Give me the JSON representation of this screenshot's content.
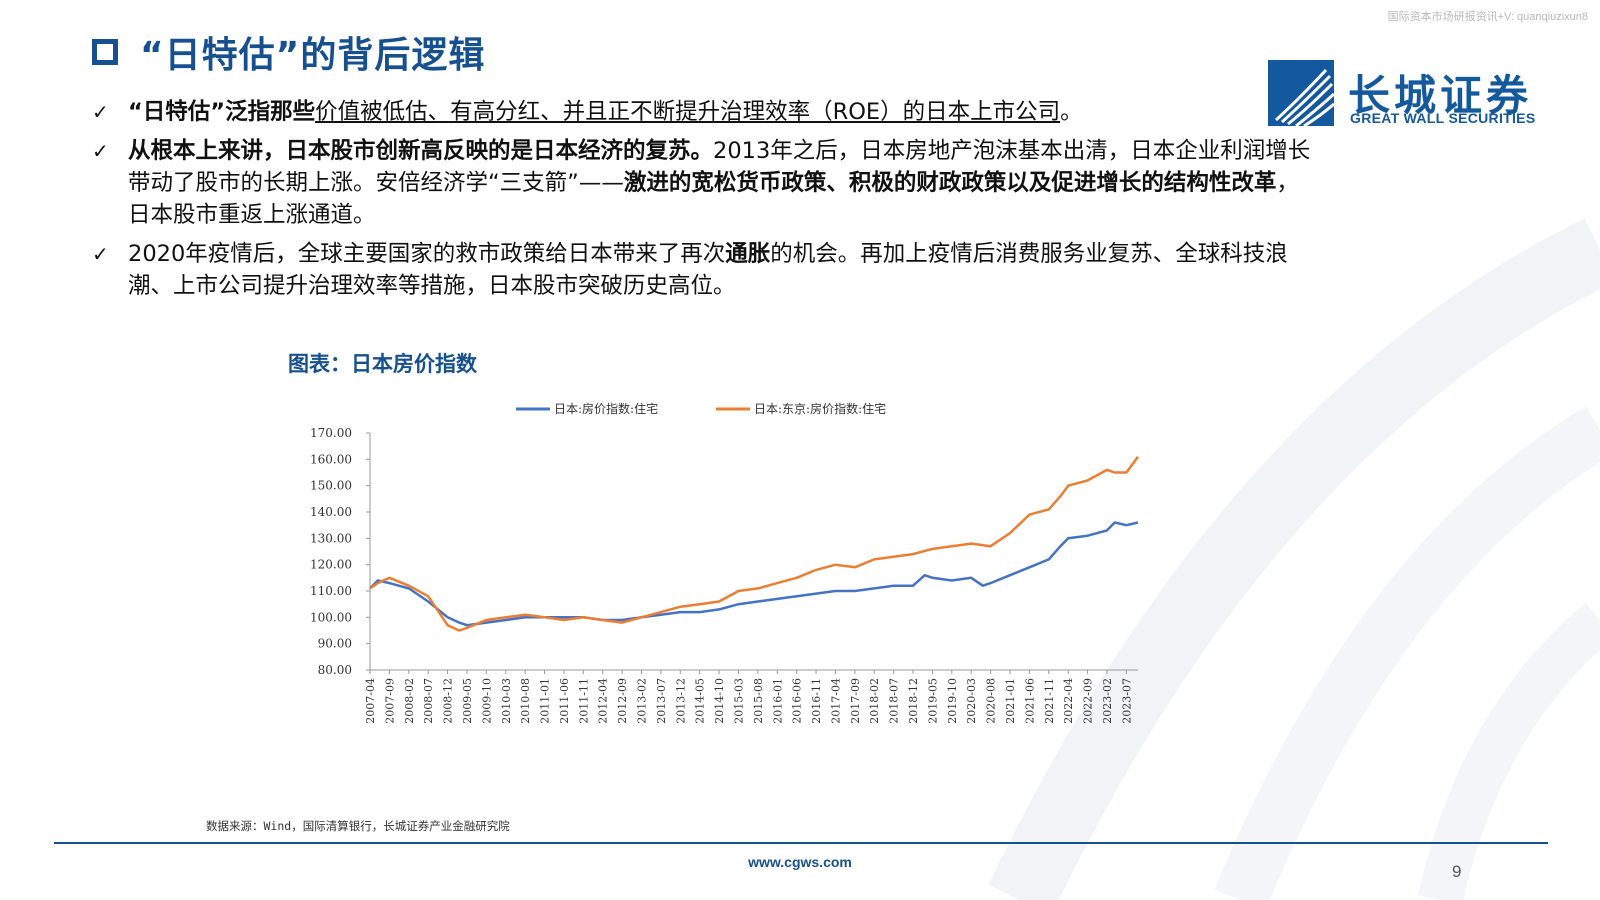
{
  "watermark": "国际资本市场研报资讯+V: quanqiuzixun8",
  "title": "“日特估”的背后逻辑",
  "logo": {
    "cn": "长城证券",
    "en": "GREAT WALL SECURITIES"
  },
  "bullets": {
    "b1": {
      "check": "✓",
      "p1": "“日特估”泛指那些",
      "p2": "价值被低估、有高分红、并且正不断提升治理效率（ROE）的日本上市公司",
      "p3": "。"
    },
    "b2": {
      "check": "✓",
      "p1": "从根本上来讲，日本股市创新高反映的是日本经济的复苏。",
      "p2": "2013年之后，日本房地产泡沫基本出清，日本企业利润增长带动了股市的长期上涨。安倍经济学“三支箭”——",
      "p3": "激进的宽松货币政策、积极的财政政策以及促进增长的结构性改革",
      "p4": "，日本股市重返上涨通道。"
    },
    "b3": {
      "check": "✓",
      "p1": "2020年疫情后，全球主要国家的救市政策给日本带来了再次",
      "p2": "通胀",
      "p3": "的机会。再加上疫情后消费服务业复苏、全球科技浪潮、上市公司提升治理效率等措施，日本股市突破历史高位。"
    }
  },
  "chart_title": "图表：日本房价指数",
  "chart_data": {
    "type": "line",
    "x_start": "2007-04",
    "x_end": "2023-10",
    "x_tick_labels": [
      "2007-04",
      "2007-09",
      "2008-02",
      "2008-07",
      "2008-12",
      "2009-05",
      "2009-10",
      "2010-03",
      "2010-08",
      "2011-01",
      "2011-06",
      "2011-11",
      "2012-04",
      "2012-09",
      "2013-02",
      "2013-07",
      "2013-12",
      "2014-05",
      "2014-10",
      "2015-03",
      "2015-08",
      "2016-01",
      "2016-06",
      "2016-11",
      "2017-04",
      "2017-09",
      "2018-02",
      "2018-07",
      "2018-12",
      "2019-05",
      "2019-10",
      "2020-03",
      "2020-08",
      "2021-01",
      "2021-06",
      "2021-11",
      "2022-04",
      "2022-09",
      "2023-02",
      "2023-07"
    ],
    "ylim": [
      80,
      170
    ],
    "y_ticks": [
      "170.00",
      "160.00",
      "150.00",
      "140.00",
      "130.00",
      "120.00",
      "110.00",
      "100.00",
      "90.00",
      "80.00"
    ],
    "series": [
      {
        "name": "日本:房价指数:住宅",
        "color": "#4472c4",
        "points": [
          [
            "2007-04",
            111
          ],
          [
            "2007-06",
            114
          ],
          [
            "2007-09",
            113
          ],
          [
            "2008-02",
            111
          ],
          [
            "2008-07",
            106
          ],
          [
            "2008-12",
            100
          ],
          [
            "2009-03",
            98
          ],
          [
            "2009-05",
            97
          ],
          [
            "2009-10",
            98
          ],
          [
            "2010-03",
            99
          ],
          [
            "2010-08",
            100
          ],
          [
            "2011-01",
            100
          ],
          [
            "2011-06",
            100
          ],
          [
            "2011-11",
            100
          ],
          [
            "2012-04",
            99
          ],
          [
            "2012-09",
            99
          ],
          [
            "2013-02",
            100
          ],
          [
            "2013-07",
            101
          ],
          [
            "2013-12",
            102
          ],
          [
            "2014-05",
            102
          ],
          [
            "2014-10",
            103
          ],
          [
            "2015-03",
            105
          ],
          [
            "2015-08",
            106
          ],
          [
            "2016-01",
            107
          ],
          [
            "2016-06",
            108
          ],
          [
            "2016-11",
            109
          ],
          [
            "2017-04",
            110
          ],
          [
            "2017-09",
            110
          ],
          [
            "2018-02",
            111
          ],
          [
            "2018-07",
            112
          ],
          [
            "2018-12",
            112
          ],
          [
            "2019-03",
            116
          ],
          [
            "2019-05",
            115
          ],
          [
            "2019-10",
            114
          ],
          [
            "2020-03",
            115
          ],
          [
            "2020-06",
            112
          ],
          [
            "2020-08",
            113
          ],
          [
            "2021-01",
            116
          ],
          [
            "2021-06",
            119
          ],
          [
            "2021-11",
            122
          ],
          [
            "2022-02",
            127
          ],
          [
            "2022-04",
            130
          ],
          [
            "2022-09",
            131
          ],
          [
            "2023-02",
            133
          ],
          [
            "2023-04",
            136
          ],
          [
            "2023-07",
            135
          ],
          [
            "2023-10",
            136
          ]
        ]
      },
      {
        "name": "日本:东京:房价指数:住宅",
        "color": "#ed7d31",
        "points": [
          [
            "2007-04",
            111
          ],
          [
            "2007-06",
            113
          ],
          [
            "2007-09",
            115
          ],
          [
            "2008-02",
            112
          ],
          [
            "2008-07",
            108
          ],
          [
            "2008-12",
            97
          ],
          [
            "2009-03",
            95
          ],
          [
            "2009-05",
            96
          ],
          [
            "2009-10",
            99
          ],
          [
            "2010-03",
            100
          ],
          [
            "2010-08",
            101
          ],
          [
            "2011-01",
            100
          ],
          [
            "2011-06",
            99
          ],
          [
            "2011-11",
            100
          ],
          [
            "2012-04",
            99
          ],
          [
            "2012-09",
            98
          ],
          [
            "2013-02",
            100
          ],
          [
            "2013-07",
            102
          ],
          [
            "2013-12",
            104
          ],
          [
            "2014-05",
            105
          ],
          [
            "2014-10",
            106
          ],
          [
            "2015-03",
            110
          ],
          [
            "2015-08",
            111
          ],
          [
            "2016-01",
            113
          ],
          [
            "2016-06",
            115
          ],
          [
            "2016-11",
            118
          ],
          [
            "2017-04",
            120
          ],
          [
            "2017-09",
            119
          ],
          [
            "2018-02",
            122
          ],
          [
            "2018-07",
            123
          ],
          [
            "2018-12",
            124
          ],
          [
            "2019-05",
            126
          ],
          [
            "2019-10",
            127
          ],
          [
            "2020-03",
            128
          ],
          [
            "2020-08",
            127
          ],
          [
            "2021-01",
            132
          ],
          [
            "2021-06",
            139
          ],
          [
            "2021-11",
            141
          ],
          [
            "2022-02",
            146
          ],
          [
            "2022-04",
            150
          ],
          [
            "2022-09",
            152
          ],
          [
            "2023-02",
            156
          ],
          [
            "2023-04",
            155
          ],
          [
            "2023-07",
            155
          ],
          [
            "2023-10",
            161
          ]
        ]
      }
    ]
  },
  "source": "数据来源：Wind，国际清算银行，长城证券产业金融研究院",
  "footer_url": "www.cgws.com",
  "page_number": "9"
}
